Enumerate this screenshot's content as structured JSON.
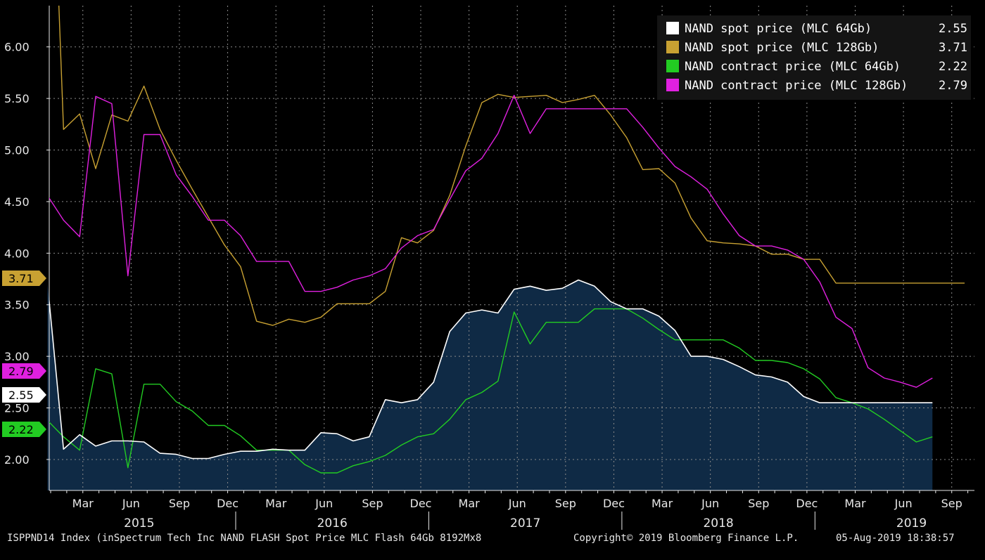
{
  "colors": {
    "spot64": "#ffffff",
    "spot128": "#c8a132",
    "contract64": "#22cc22",
    "contract128": "#e020e0",
    "area_fill": "#0f2a45",
    "grid": "#8a8a8a",
    "axis_text": "#e8e8e8"
  },
  "footer": {
    "left": "ISPPND14 Index (inSpectrum Tech Inc NAND FLASH Spot Price MLC Flash 64Gb 8192Mx8",
    "center": "Copyright© 2019 Bloomberg Finance L.P.",
    "right": "05-Aug-2019 18:38:57"
  },
  "chart_data": {
    "type": "line",
    "title": "",
    "xlabel": "",
    "ylabel": "",
    "ylim": [
      1.7,
      6.4
    ],
    "y_ticks": [
      {
        "value": 2.0,
        "label": "2.00"
      },
      {
        "value": 2.5,
        "label": "2.50"
      },
      {
        "value": 3.0,
        "label": "3.00"
      },
      {
        "value": 3.5,
        "label": "3.50"
      },
      {
        "value": 4.0,
        "label": "4.00"
      },
      {
        "value": 4.5,
        "label": "4.50"
      },
      {
        "value": 5.0,
        "label": "5.00"
      },
      {
        "value": 5.5,
        "label": "5.50"
      },
      {
        "value": 6.0,
        "label": "6.00"
      }
    ],
    "x_month_ticks": [
      {
        "month": 2,
        "label": "Mar"
      },
      {
        "month": 5,
        "label": "Jun"
      },
      {
        "month": 8,
        "label": "Sep"
      },
      {
        "month": 11,
        "label": "Dec"
      },
      {
        "month": 14,
        "label": "Mar"
      },
      {
        "month": 17,
        "label": "Jun"
      },
      {
        "month": 20,
        "label": "Sep"
      },
      {
        "month": 23,
        "label": "Dec"
      },
      {
        "month": 26,
        "label": "Mar"
      },
      {
        "month": 29,
        "label": "Jun"
      },
      {
        "month": 32,
        "label": "Sep"
      },
      {
        "month": 35,
        "label": "Dec"
      },
      {
        "month": 38,
        "label": "Mar"
      },
      {
        "month": 41,
        "label": "Jun"
      },
      {
        "month": 44,
        "label": "Sep"
      },
      {
        "month": 47,
        "label": "Dec"
      },
      {
        "month": 50,
        "label": "Mar"
      },
      {
        "month": 53,
        "label": "Jun"
      },
      {
        "month": 56,
        "label": "Sep"
      }
    ],
    "x_years": [
      {
        "label": "2015",
        "center": 5.5
      },
      {
        "label": "2016",
        "center": 17.5
      },
      {
        "label": "2017",
        "center": 29.5
      },
      {
        "label": "2018",
        "center": 41.5
      },
      {
        "label": "2019",
        "center": 53.5
      }
    ],
    "x_year_boundaries": [
      11.5,
      23.5,
      35.5,
      47.5
    ],
    "legend_position": "top-right",
    "series": [
      {
        "name": "NAND spot price (MLC 64Gb)",
        "last": "2.55",
        "color_key": "spot64",
        "area": true,
        "points": [
          [
            -0.2,
            3.71
          ],
          [
            0.8,
            2.1
          ],
          [
            1.8,
            2.24
          ],
          [
            2.8,
            2.13
          ],
          [
            3.8,
            2.18
          ],
          [
            4.8,
            2.18
          ],
          [
            5.8,
            2.17
          ],
          [
            6.8,
            2.06
          ],
          [
            7.8,
            2.05
          ],
          [
            8.8,
            2.01
          ],
          [
            9.8,
            2.01
          ],
          [
            10.8,
            2.05
          ],
          [
            11.8,
            2.08
          ],
          [
            12.8,
            2.08
          ],
          [
            13.8,
            2.1
          ],
          [
            14.8,
            2.09
          ],
          [
            15.8,
            2.09
          ],
          [
            16.8,
            2.26
          ],
          [
            17.8,
            2.25
          ],
          [
            18.8,
            2.18
          ],
          [
            19.8,
            2.22
          ],
          [
            20.8,
            2.58
          ],
          [
            21.8,
            2.55
          ],
          [
            22.8,
            2.58
          ],
          [
            23.8,
            2.75
          ],
          [
            24.8,
            3.24
          ],
          [
            25.8,
            3.42
          ],
          [
            26.8,
            3.45
          ],
          [
            27.8,
            3.42
          ],
          [
            28.8,
            3.65
          ],
          [
            29.8,
            3.68
          ],
          [
            30.8,
            3.64
          ],
          [
            31.8,
            3.66
          ],
          [
            32.8,
            3.74
          ],
          [
            33.8,
            3.68
          ],
          [
            34.8,
            3.53
          ],
          [
            35.8,
            3.46
          ],
          [
            36.8,
            3.46
          ],
          [
            37.8,
            3.39
          ],
          [
            38.8,
            3.25
          ],
          [
            39.8,
            3.0
          ],
          [
            40.8,
            3.0
          ],
          [
            41.8,
            2.97
          ],
          [
            42.8,
            2.9
          ],
          [
            43.8,
            2.82
          ],
          [
            44.8,
            2.8
          ],
          [
            45.8,
            2.75
          ],
          [
            46.8,
            2.61
          ],
          [
            47.8,
            2.55
          ],
          [
            48.8,
            2.55
          ],
          [
            49.8,
            2.55
          ],
          [
            50.8,
            2.55
          ],
          [
            51.8,
            2.55
          ],
          [
            52.8,
            2.55
          ],
          [
            53.8,
            2.55
          ],
          [
            54.8,
            2.55
          ]
        ]
      },
      {
        "name": "NAND spot price (MLC 128Gb)",
        "last": "3.71",
        "color_key": "spot128",
        "area": false,
        "points": [
          [
            0.5,
            6.45
          ],
          [
            0.8,
            5.2
          ],
          [
            1.8,
            5.35
          ],
          [
            2.8,
            4.82
          ],
          [
            3.8,
            5.34
          ],
          [
            4.8,
            5.28
          ],
          [
            5.8,
            5.62
          ],
          [
            6.8,
            5.2
          ],
          [
            7.8,
            4.9
          ],
          [
            8.8,
            4.62
          ],
          [
            9.8,
            4.35
          ],
          [
            10.8,
            4.08
          ],
          [
            11.8,
            3.87
          ],
          [
            12.8,
            3.34
          ],
          [
            13.8,
            3.3
          ],
          [
            14.8,
            3.36
          ],
          [
            15.8,
            3.33
          ],
          [
            16.8,
            3.38
          ],
          [
            17.8,
            3.51
          ],
          [
            18.8,
            3.51
          ],
          [
            19.8,
            3.51
          ],
          [
            20.8,
            3.63
          ],
          [
            21.8,
            4.15
          ],
          [
            22.8,
            4.1
          ],
          [
            23.8,
            4.22
          ],
          [
            24.8,
            4.56
          ],
          [
            25.8,
            5.04
          ],
          [
            26.8,
            5.46
          ],
          [
            27.8,
            5.54
          ],
          [
            28.8,
            5.51
          ],
          [
            29.8,
            5.52
          ],
          [
            30.8,
            5.53
          ],
          [
            31.8,
            5.46
          ],
          [
            32.8,
            5.49
          ],
          [
            33.8,
            5.53
          ],
          [
            34.8,
            5.34
          ],
          [
            35.8,
            5.12
          ],
          [
            36.8,
            4.81
          ],
          [
            37.8,
            4.82
          ],
          [
            38.8,
            4.68
          ],
          [
            39.8,
            4.34
          ],
          [
            40.8,
            4.12
          ],
          [
            41.8,
            4.1
          ],
          [
            42.8,
            4.09
          ],
          [
            43.8,
            4.07
          ],
          [
            44.8,
            3.99
          ],
          [
            45.8,
            3.99
          ],
          [
            46.8,
            3.94
          ],
          [
            47.8,
            3.94
          ],
          [
            48.8,
            3.71
          ],
          [
            49.8,
            3.71
          ],
          [
            50.8,
            3.71
          ],
          [
            51.8,
            3.71
          ],
          [
            52.8,
            3.71
          ],
          [
            53.8,
            3.71
          ],
          [
            54.8,
            3.71
          ],
          [
            55.8,
            3.71
          ],
          [
            56.8,
            3.71
          ]
        ]
      },
      {
        "name": "NAND contract price (MLC 64Gb)",
        "last": "2.22",
        "color_key": "contract64",
        "area": false,
        "points": [
          [
            -0.2,
            2.38
          ],
          [
            0.8,
            2.22
          ],
          [
            1.8,
            2.09
          ],
          [
            2.8,
            2.88
          ],
          [
            3.8,
            2.83
          ],
          [
            4.8,
            1.92
          ],
          [
            5.8,
            2.73
          ],
          [
            6.8,
            2.73
          ],
          [
            7.8,
            2.56
          ],
          [
            8.8,
            2.47
          ],
          [
            9.8,
            2.33
          ],
          [
            10.8,
            2.33
          ],
          [
            11.8,
            2.23
          ],
          [
            12.8,
            2.09
          ],
          [
            13.8,
            2.09
          ],
          [
            14.8,
            2.09
          ],
          [
            15.8,
            1.95
          ],
          [
            16.8,
            1.87
          ],
          [
            17.8,
            1.87
          ],
          [
            18.8,
            1.94
          ],
          [
            19.8,
            1.98
          ],
          [
            20.8,
            2.04
          ],
          [
            21.8,
            2.14
          ],
          [
            22.8,
            2.22
          ],
          [
            23.8,
            2.25
          ],
          [
            24.8,
            2.39
          ],
          [
            25.8,
            2.58
          ],
          [
            26.8,
            2.65
          ],
          [
            27.8,
            2.76
          ],
          [
            28.8,
            3.43
          ],
          [
            29.8,
            3.12
          ],
          [
            30.8,
            3.33
          ],
          [
            31.8,
            3.33
          ],
          [
            32.8,
            3.33
          ],
          [
            33.8,
            3.46
          ],
          [
            34.8,
            3.46
          ],
          [
            35.8,
            3.46
          ],
          [
            36.8,
            3.37
          ],
          [
            37.8,
            3.26
          ],
          [
            38.8,
            3.16
          ],
          [
            39.8,
            3.16
          ],
          [
            40.8,
            3.16
          ],
          [
            41.8,
            3.16
          ],
          [
            42.8,
            3.08
          ],
          [
            43.8,
            2.96
          ],
          [
            44.8,
            2.96
          ],
          [
            45.8,
            2.94
          ],
          [
            46.8,
            2.88
          ],
          [
            47.8,
            2.78
          ],
          [
            48.8,
            2.6
          ],
          [
            49.8,
            2.55
          ],
          [
            50.8,
            2.49
          ],
          [
            51.8,
            2.39
          ],
          [
            52.8,
            2.28
          ],
          [
            53.8,
            2.17
          ],
          [
            54.8,
            2.22
          ]
        ]
      },
      {
        "name": "NAND contract price (MLC 128Gb)",
        "last": "2.79",
        "color_key": "contract128",
        "area": false,
        "points": [
          [
            -0.2,
            4.56
          ],
          [
            0.8,
            4.32
          ],
          [
            1.8,
            4.16
          ],
          [
            2.8,
            5.52
          ],
          [
            3.8,
            5.45
          ],
          [
            4.8,
            3.78
          ],
          [
            5.8,
            5.15
          ],
          [
            6.8,
            5.15
          ],
          [
            7.8,
            4.76
          ],
          [
            8.8,
            4.55
          ],
          [
            9.8,
            4.32
          ],
          [
            10.8,
            4.32
          ],
          [
            11.8,
            4.17
          ],
          [
            12.8,
            3.92
          ],
          [
            13.8,
            3.92
          ],
          [
            14.8,
            3.92
          ],
          [
            15.8,
            3.63
          ],
          [
            16.8,
            3.63
          ],
          [
            17.8,
            3.67
          ],
          [
            18.8,
            3.74
          ],
          [
            19.8,
            3.78
          ],
          [
            20.8,
            3.85
          ],
          [
            21.8,
            4.05
          ],
          [
            22.8,
            4.17
          ],
          [
            23.8,
            4.23
          ],
          [
            24.8,
            4.52
          ],
          [
            25.8,
            4.8
          ],
          [
            26.8,
            4.92
          ],
          [
            27.8,
            5.16
          ],
          [
            28.8,
            5.53
          ],
          [
            29.8,
            5.16
          ],
          [
            30.8,
            5.4
          ],
          [
            31.8,
            5.4
          ],
          [
            32.8,
            5.4
          ],
          [
            33.8,
            5.4
          ],
          [
            34.8,
            5.4
          ],
          [
            35.8,
            5.4
          ],
          [
            36.8,
            5.22
          ],
          [
            37.8,
            5.02
          ],
          [
            38.8,
            4.84
          ],
          [
            39.8,
            4.74
          ],
          [
            40.8,
            4.62
          ],
          [
            41.8,
            4.38
          ],
          [
            42.8,
            4.17
          ],
          [
            43.8,
            4.07
          ],
          [
            44.8,
            4.07
          ],
          [
            45.8,
            4.03
          ],
          [
            46.8,
            3.94
          ],
          [
            47.8,
            3.72
          ],
          [
            48.8,
            3.38
          ],
          [
            49.8,
            3.27
          ],
          [
            50.8,
            2.89
          ],
          [
            51.8,
            2.79
          ],
          [
            52.8,
            2.75
          ],
          [
            53.8,
            2.7
          ],
          [
            54.8,
            2.79
          ]
        ]
      }
    ]
  }
}
